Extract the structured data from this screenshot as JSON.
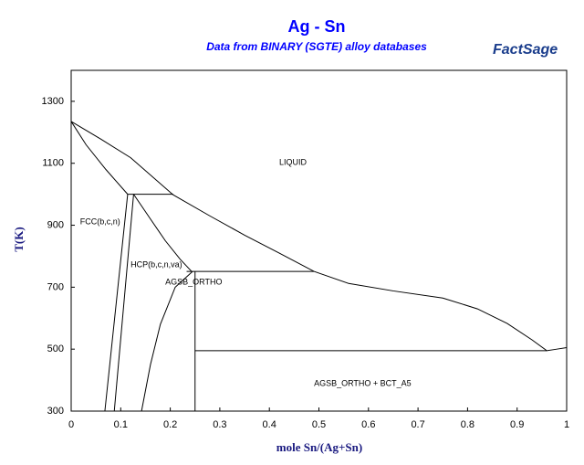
{
  "chart_data": {
    "type": "line",
    "title": "Ag - Sn",
    "subtitle": "Data from BINARY (SGTE) alloy databases",
    "logo": "FactSage",
    "x_label": "mole Sn/(Ag+Sn)",
    "y_label": "T(K)",
    "xlim": [
      0,
      1
    ],
    "ylim": [
      300,
      1400
    ],
    "xticks": [
      0,
      0.1,
      0.2,
      0.3,
      0.4,
      0.5,
      0.6,
      0.7,
      0.8,
      0.9,
      1
    ],
    "yticks": [
      300,
      500,
      700,
      900,
      1100,
      1300
    ],
    "series": [
      {
        "color": "#000000",
        "x": [
          0,
          0.06,
          0.12,
          0.206,
          0.28,
          0.35,
          0.42,
          0.49,
          0.56,
          0.65,
          0.75,
          0.82,
          0.88,
          0.93,
          0.96,
          0.98,
          1
        ],
        "values": [
          1235,
          1178,
          1118,
          998,
          930,
          868,
          810,
          751,
          712,
          688,
          665,
          630,
          583,
          530,
          495,
          500,
          505
        ]
      },
      {
        "color": "#000000",
        "x": [
          0,
          0.03,
          0.07,
          0.114
        ],
        "values": [
          1235,
          1160,
          1080,
          1000
        ]
      },
      {
        "color": "#000000",
        "x": [
          0.114,
          0.068
        ],
        "values": [
          1000,
          300
        ]
      },
      {
        "color": "#000000",
        "x": [
          0.126,
          0.087
        ],
        "values": [
          1000,
          300
        ]
      },
      {
        "color": "#000000",
        "x": [
          0.126,
          0.16,
          0.19,
          0.22,
          0.243
        ],
        "values": [
          1000,
          920,
          850,
          790,
          751
        ]
      },
      {
        "color": "#000000",
        "x": [
          0.114,
          0.206
        ],
        "values": [
          1000,
          1000
        ]
      },
      {
        "color": "#000000",
        "x": [
          0.142,
          0.16,
          0.18,
          0.21,
          0.245
        ],
        "values": [
          300,
          450,
          580,
          700,
          751
        ]
      },
      {
        "color": "#000000",
        "x": [
          0.233,
          0.49
        ],
        "values": [
          751,
          751
        ]
      },
      {
        "color": "#000000",
        "x": [
          0.25,
          0.25
        ],
        "values": [
          751,
          300
        ]
      },
      {
        "color": "#000000",
        "x": [
          0.25,
          0.96
        ],
        "values": [
          495,
          495
        ]
      }
    ],
    "annotations": [
      {
        "text": "LIQUID",
        "x": 0.42,
        "y": 1102
      },
      {
        "text": "FCC(b,c,n)",
        "x": 0.018,
        "y": 910
      },
      {
        "text": "HCP(b,c,n,va)",
        "x": 0.12,
        "y": 772
      },
      {
        "text": "AGSB_ORTHO",
        "x": 0.19,
        "y": 716
      },
      {
        "text": "AGSB_ORTHO + BCT_A5",
        "x": 0.49,
        "y": 388
      }
    ]
  }
}
